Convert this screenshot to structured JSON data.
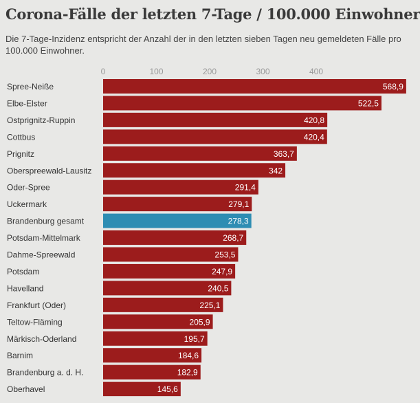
{
  "chart_data": {
    "type": "bar",
    "orientation": "horizontal",
    "title": "Corona-Fälle der letzten 7-Tage / 100.000 Einwohner",
    "subtitle": "Die 7-Tage-Inzidenz entspricht der Anzahl der in den letzten sieben Tagen neu gemeldeten Fälle pro 100.000 Einwohner.",
    "xlim": [
      0,
      580
    ],
    "xticks": [
      "0",
      "100",
      "200",
      "300",
      "400"
    ],
    "xtick_values": [
      0,
      100,
      200,
      300,
      400
    ],
    "grid": false,
    "colors": {
      "default": "#9c1c1c",
      "highlight": "#2e8db3"
    },
    "categories": [
      "Spree-Neiße",
      "Elbe-Elster",
      "Ostprignitz-Ruppin",
      "Cottbus",
      "Prignitz",
      "Oberspreewald-Lausitz",
      "Oder-Spree",
      "Uckermark",
      "Brandenburg gesamt",
      "Potsdam-Mittelmark",
      "Dahme-Spreewald",
      "Potsdam",
      "Havelland",
      "Frankfurt (Oder)",
      "Teltow-Fläming",
      "Märkisch-Oderland",
      "Barnim",
      "Brandenburg a. d. H.",
      "Oberhavel"
    ],
    "values": [
      568.9,
      522.5,
      420.8,
      420.4,
      363.7,
      342,
      291.4,
      279.1,
      278.3,
      268.7,
      253.5,
      247.9,
      240.5,
      225.1,
      205.9,
      195.7,
      184.6,
      182.9,
      145.6
    ],
    "labels": [
      "568,9",
      "522,5",
      "420,8",
      "420,4",
      "363,7",
      "342",
      "291,4",
      "279,1",
      "278,3",
      "268,7",
      "253,5",
      "247,9",
      "240,5",
      "225,1",
      "205,9",
      "195,7",
      "184,6",
      "182,9",
      "145,6"
    ],
    "highlight": "Brandenburg gesamt"
  }
}
